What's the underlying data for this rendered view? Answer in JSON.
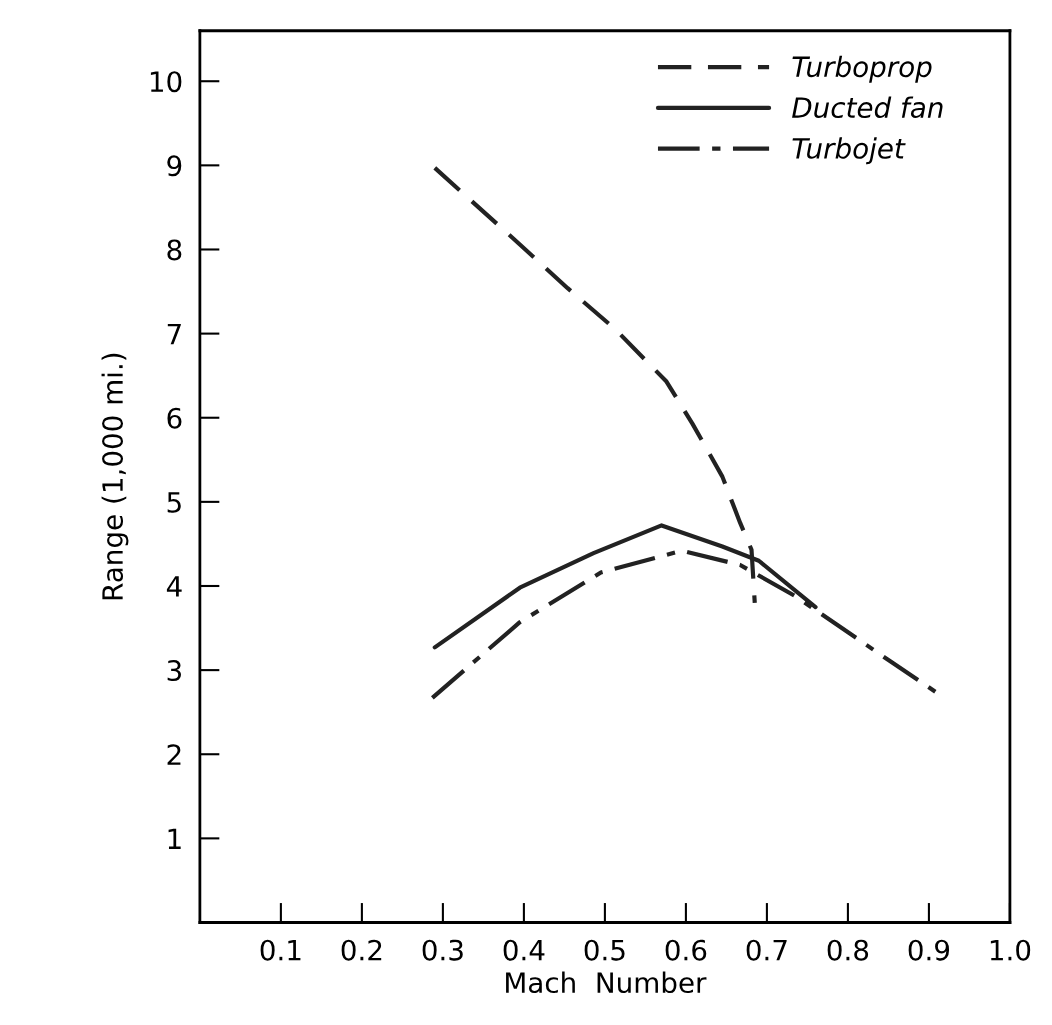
{
  "chart_data": {
    "type": "line",
    "xlabel": "Mach  Number",
    "ylabel": "Range (1,000 mi.)",
    "xlim": [
      0,
      1.0
    ],
    "ylim": [
      0,
      10.6
    ],
    "xticks": [
      0.1,
      0.2,
      0.3,
      0.4,
      0.5,
      0.6,
      0.7,
      0.8,
      0.9,
      {
        "value": 1.0,
        "label": "1.0"
      }
    ],
    "yticks": [
      1,
      2,
      3,
      4,
      5,
      6,
      7,
      8,
      9,
      10
    ],
    "grid": false,
    "legend": "top right",
    "marker": "none",
    "series": [
      {
        "name": "Turboprop",
        "color": "#222222",
        "line_style": "dashed",
        "x": [
          0.29,
          0.395,
          0.454,
          0.513,
          0.576,
          0.608,
          0.645,
          0.667,
          0.681,
          0.685
        ],
        "values": [
          8.97,
          8.06,
          7.54,
          7.05,
          6.43,
          5.93,
          5.3,
          4.75,
          4.43,
          3.8
        ]
      },
      {
        "name": "Ducted fan",
        "color": "#222222",
        "line_style": "solid",
        "x": [
          0.29,
          0.395,
          0.486,
          0.57,
          0.645,
          0.69,
          0.76
        ],
        "values": [
          3.27,
          3.98,
          4.39,
          4.72,
          4.47,
          4.3,
          3.75
        ]
      },
      {
        "name": "Turbojet",
        "color": "#222222",
        "line_style": "dashdot",
        "x": [
          0.287,
          0.395,
          0.495,
          0.595,
          0.667,
          0.735,
          0.85,
          0.91
        ],
        "values": [
          2.67,
          3.57,
          4.16,
          4.42,
          4.25,
          3.88,
          3.12,
          2.73
        ]
      }
    ]
  }
}
